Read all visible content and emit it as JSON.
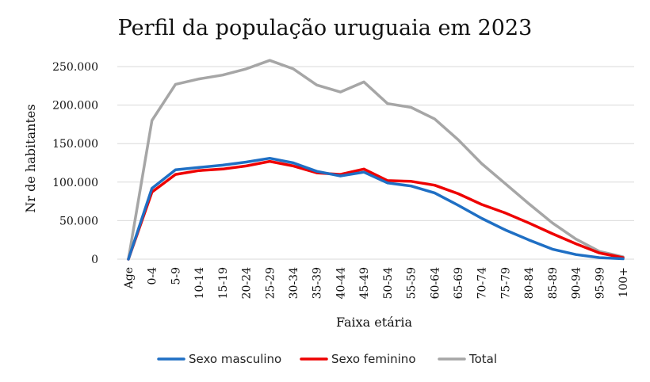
{
  "chart_data": {
    "type": "line",
    "title": "Perfil da população uruguaia em 2023",
    "xlabel": "Faixa etária",
    "ylabel": "Nr de habitantes",
    "categories": [
      "Age",
      "0-4",
      "5-9",
      "10-14",
      "15-19",
      "20-24",
      "25-29",
      "30-34",
      "35-39",
      "40-44",
      "45-49",
      "50-54",
      "55-59",
      "60-64",
      "65-69",
      "70-74",
      "75-79",
      "80-84",
      "85-89",
      "90-94",
      "95-99",
      "100+"
    ],
    "ylim": [
      0,
      250000
    ],
    "yticks": [
      0,
      50000,
      100000,
      150000,
      200000,
      250000
    ],
    "ytick_labels": [
      "0",
      "50.000",
      "100.000",
      "150.000",
      "200.000",
      "250.000"
    ],
    "grid": true,
    "legend_position": "bottom",
    "series": [
      {
        "name": "Sexo masculino",
        "color": "#1f6fc4",
        "values": [
          0,
          92000,
          116000,
          119000,
          122000,
          126000,
          131000,
          125000,
          114000,
          108000,
          113000,
          99000,
          95000,
          86000,
          70000,
          53000,
          38000,
          25000,
          13000,
          6000,
          2000,
          500
        ]
      },
      {
        "name": "Sexo feminino",
        "color": "#ee0000",
        "values": [
          0,
          87000,
          110000,
          115000,
          117000,
          121000,
          127000,
          121000,
          112000,
          110000,
          117000,
          102000,
          101000,
          96000,
          85000,
          71000,
          60000,
          47000,
          33000,
          20000,
          8000,
          2000
        ]
      },
      {
        "name": "Total",
        "color": "#a6a6a6",
        "values": [
          0,
          180000,
          227000,
          234000,
          239000,
          247000,
          258000,
          247000,
          226000,
          217000,
          230000,
          202000,
          197000,
          182000,
          155000,
          124000,
          98000,
          72000,
          47000,
          26000,
          10000,
          3000
        ]
      }
    ]
  }
}
